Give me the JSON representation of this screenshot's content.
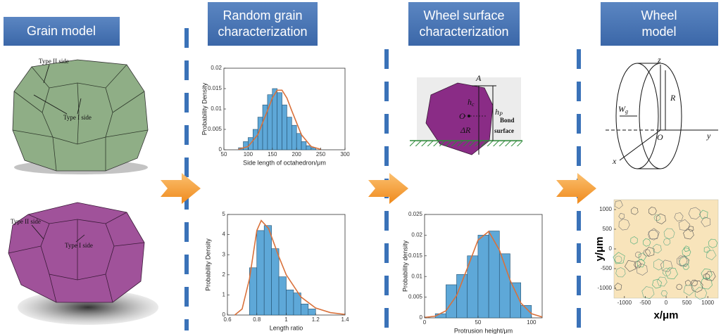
{
  "columns": [
    {
      "title": [
        "Grain model"
      ]
    },
    {
      "title": [
        "Random grain",
        "characterization"
      ]
    },
    {
      "title": [
        "Wheel surface",
        "characterization"
      ]
    },
    {
      "title": [
        "Wheel",
        "model"
      ]
    }
  ],
  "grain_model": {
    "upper_labels": [
      "Type II side",
      "Type I side"
    ],
    "lower_labels": [
      "Type II side",
      "Type I side"
    ]
  },
  "surface_diagram": {
    "labels": {
      "A": "A",
      "hc": [
        "h",
        "c"
      ],
      "hp": [
        "h",
        "P"
      ],
      "O": "O",
      "dR": "ΔR",
      "bond": [
        "Bond",
        "surface"
      ]
    }
  },
  "wheel_diagram": {
    "labels": {
      "z": "z",
      "wg": [
        "W",
        "g"
      ],
      "R": "R",
      "O": "O",
      "y": "y",
      "x": "x"
    }
  },
  "chart_data": [
    {
      "type": "histogram",
      "x_label": "Side length of octahedron/μm",
      "y_label": "Probability Density",
      "bins": [
        80,
        90,
        100,
        110,
        120,
        130,
        140,
        150,
        160,
        170,
        180,
        190,
        200,
        210,
        220,
        230,
        240
      ],
      "values": [
        0.0005,
        0.002,
        0.003,
        0.005,
        0.008,
        0.011,
        0.0135,
        0.015,
        0.014,
        0.011,
        0.008,
        0.006,
        0.004,
        0.002,
        0.001,
        0.0005
      ],
      "color": "#5ea8d8",
      "fit": {
        "x": [
          80,
          100,
          120,
          140,
          150,
          160,
          170,
          180,
          190,
          210,
          230,
          250
        ],
        "y": [
          0.0001,
          0.0008,
          0.0037,
          0.0096,
          0.0127,
          0.0146,
          0.0146,
          0.0127,
          0.0096,
          0.0037,
          0.0008,
          0.0001
        ],
        "color": "#d9713b"
      },
      "xlim": [
        50,
        300
      ],
      "xticks": [
        50,
        100,
        150,
        200,
        250,
        300
      ],
      "ylim": [
        0,
        0.02
      ],
      "yticks": [
        0,
        0.005,
        0.01,
        0.015,
        0.02
      ]
    },
    {
      "type": "histogram",
      "x_label": "Length ratio",
      "y_label": "Probability Density",
      "bins": [
        0.75,
        0.8,
        0.85,
        0.9,
        0.95,
        1.0,
        1.05,
        1.1,
        1.15,
        1.2
      ],
      "values": [
        2.35,
        4.2,
        4.45,
        3.3,
        1.9,
        1.25,
        1.1,
        0.55,
        0.3
      ],
      "color": "#5ea8d8",
      "fit": {
        "x": [
          0.65,
          0.7,
          0.75,
          0.8,
          0.83,
          0.88,
          0.95,
          1.0,
          1.1,
          1.2,
          1.3,
          1.4
        ],
        "y": [
          0,
          0.3,
          1.8,
          4.2,
          4.7,
          4.3,
          2.9,
          2.0,
          0.9,
          0.35,
          0.12,
          0.03
        ],
        "color": "#d9713b"
      },
      "xlim": [
        0.6,
        1.4
      ],
      "xticks": [
        0.6,
        0.8,
        1,
        1.2,
        1.4
      ],
      "ylim": [
        0,
        5
      ],
      "yticks": [
        0,
        1,
        2,
        3,
        4,
        5
      ]
    },
    {
      "type": "histogram",
      "x_label": "Protrusion height/μm",
      "y_label": "Probability density",
      "bins": [
        10,
        20,
        30,
        40,
        50,
        60,
        70,
        80,
        90,
        100
      ],
      "values": [
        0.001,
        0.008,
        0.0105,
        0.015,
        0.02,
        0.021,
        0.0155,
        0.0085,
        0.003
      ],
      "color": "#5ea8d8",
      "fit": {
        "x": [
          0,
          10,
          20,
          30,
          40,
          50,
          60,
          70,
          80,
          90,
          100,
          110
        ],
        "y": [
          0.0001,
          0.0004,
          0.0017,
          0.0054,
          0.012,
          0.0188,
          0.0209,
          0.0164,
          0.0091,
          0.0036,
          0.001,
          0.0002
        ],
        "color": "#d9713b"
      },
      "xlim": [
        0,
        110
      ],
      "xticks": [
        0,
        50,
        100
      ],
      "ylim": [
        0,
        0.025
      ],
      "yticks": [
        0,
        0.005,
        0.01,
        0.015,
        0.02,
        0.025
      ]
    },
    {
      "type": "pattern",
      "x_label": "x/μm",
      "y_label": "y/μm",
      "color": "#f8e4bb",
      "xlim": [
        -1250,
        1250
      ],
      "xticks": [
        -1000,
        -500,
        0,
        500,
        1000
      ],
      "ylim": [
        -1250,
        1250
      ],
      "yticks": [
        -1000,
        -500,
        0,
        500,
        1000
      ]
    }
  ]
}
